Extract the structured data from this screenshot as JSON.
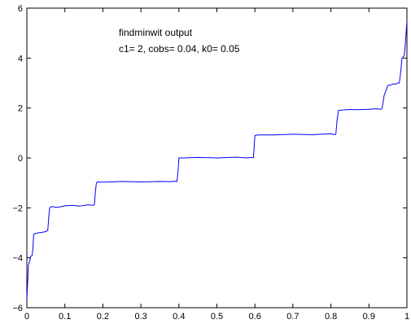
{
  "chart_data": {
    "type": "line",
    "title": "",
    "xlabel": "",
    "ylabel": "",
    "xlim": [
      0,
      1
    ],
    "ylim": [
      -6,
      6
    ],
    "xticks": [
      0,
      0.1,
      0.2,
      0.3,
      0.4,
      0.5,
      0.6,
      0.7,
      0.8,
      0.9,
      1
    ],
    "xtick_labels": [
      "0",
      "0.1",
      "0.2",
      "0.3",
      "0.4",
      "0.5",
      "0.6",
      "0.7",
      "0.8",
      "0.9",
      "1"
    ],
    "yticks": [
      -6,
      -4,
      -2,
      0,
      2,
      4,
      6
    ],
    "ytick_labels": [
      "−6",
      "−4",
      "−2",
      "0",
      "2",
      "4",
      "6"
    ],
    "grid": false,
    "legend": "none",
    "annotations": [
      "findminwit output",
      "c1= 2, cobs= 0.04, k0= 0.05"
    ],
    "series": [
      {
        "color": "#0000ff",
        "x": [
          0,
          0.004,
          0.008,
          0.01,
          0.014,
          0.016,
          0.018,
          0.03,
          0.04,
          0.05,
          0.055,
          0.058,
          0.06,
          0.065,
          0.08,
          0.1,
          0.12,
          0.14,
          0.16,
          0.175,
          0.178,
          0.18,
          0.183,
          0.186,
          0.19,
          0.2,
          0.25,
          0.3,
          0.35,
          0.38,
          0.39,
          0.395,
          0.398,
          0.4,
          0.41,
          0.45,
          0.5,
          0.55,
          0.58,
          0.59,
          0.596,
          0.598,
          0.6,
          0.61,
          0.65,
          0.7,
          0.75,
          0.8,
          0.81,
          0.813,
          0.816,
          0.82,
          0.83,
          0.85,
          0.87,
          0.9,
          0.92,
          0.932,
          0.935,
          0.94,
          0.95,
          0.96,
          0.966,
          0.97,
          0.975,
          0.98,
          0.984,
          0.987,
          0.99,
          0.993,
          0.996,
          1.0
        ],
        "y": [
          -5.7,
          -4.3,
          -4.1,
          -3.95,
          -3.9,
          -3.6,
          -3.05,
          -3.0,
          -2.98,
          -2.95,
          -2.9,
          -2.3,
          -2.0,
          -1.95,
          -1.98,
          -1.92,
          -1.9,
          -1.93,
          -1.88,
          -1.9,
          -1.85,
          -1.4,
          -1.0,
          -0.95,
          -0.97,
          -0.97,
          -0.94,
          -0.96,
          -0.94,
          -0.95,
          -0.93,
          -0.95,
          -0.5,
          0.0,
          0.0,
          0.02,
          0.0,
          0.03,
          0.0,
          0.02,
          0.01,
          0.4,
          0.9,
          0.92,
          0.92,
          0.95,
          0.93,
          0.97,
          0.93,
          0.95,
          1.5,
          1.9,
          1.92,
          1.94,
          1.93,
          1.95,
          1.97,
          1.95,
          2.0,
          2.5,
          2.9,
          2.94,
          2.97,
          2.95,
          3.0,
          3.0,
          3.5,
          4.0,
          4.05,
          4.1,
          4.6,
          5.5
        ]
      }
    ]
  }
}
